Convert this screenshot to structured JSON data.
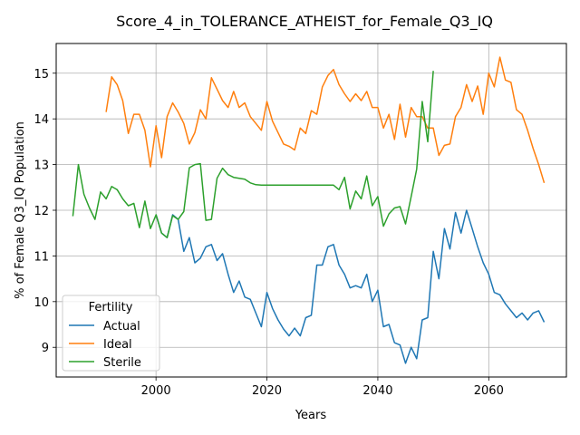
{
  "chart_data": {
    "type": "line",
    "title": "Score_4_in_TOLERANCE_ATHEIST_for_Female_Q3_IQ",
    "xlabel": "Years",
    "ylabel": "% of Female Q3_IQ Population",
    "xlim": [
      1982,
      2074
    ],
    "ylim": [
      8.35,
      15.65
    ],
    "xticks": [
      2000,
      2020,
      2040,
      2060
    ],
    "yticks": [
      9,
      10,
      11,
      12,
      13,
      14,
      15
    ],
    "grid": true,
    "legend": {
      "title": "Fertility",
      "position": "lower-left"
    },
    "series": [
      {
        "name": "Actual",
        "color": "#1f77b4",
        "x": [
          2000,
          2001,
          2002,
          2003,
          2004,
          2005,
          2006,
          2007,
          2008,
          2009,
          2010,
          2011,
          2012,
          2013,
          2014,
          2015,
          2016,
          2017,
          2018,
          2019,
          2020,
          2021,
          2022,
          2023,
          2024,
          2025,
          2026,
          2027,
          2028,
          2029,
          2030,
          2031,
          2032,
          2033,
          2034,
          2035,
          2036,
          2037,
          2038,
          2039,
          2040,
          2041,
          2042,
          2043,
          2044,
          2045,
          2046,
          2047,
          2048,
          2049,
          2050,
          2051,
          2052,
          2053,
          2054,
          2055,
          2056,
          2057,
          2058,
          2059,
          2060,
          2061,
          2062,
          2063,
          2064,
          2065,
          2066,
          2067,
          2068,
          2069,
          2070
        ],
        "y": [
          11.9,
          11.5,
          11.4,
          11.9,
          11.8,
          11.1,
          11.4,
          10.85,
          10.95,
          11.2,
          11.25,
          10.9,
          11.05,
          10.6,
          10.2,
          10.45,
          10.1,
          10.05,
          9.75,
          9.45,
          10.2,
          9.85,
          9.6,
          9.4,
          9.25,
          9.42,
          9.25,
          9.65,
          9.7,
          10.8,
          10.8,
          11.2,
          11.25,
          10.8,
          10.6,
          10.3,
          10.35,
          10.3,
          10.6,
          10.0,
          10.25,
          9.45,
          9.5,
          9.1,
          9.05,
          8.65,
          9.0,
          8.75,
          9.6,
          9.65,
          11.1,
          10.5,
          11.6,
          11.15,
          11.95,
          11.5,
          12.0,
          11.6,
          11.2,
          10.85,
          10.6,
          10.2,
          10.15,
          9.95,
          9.8,
          9.65,
          9.75,
          9.6,
          9.75,
          9.8,
          9.55
        ]
      },
      {
        "name": "Ideal",
        "color": "#ff7f0e",
        "x": [
          1991,
          1992,
          1993,
          1994,
          1995,
          1996,
          1997,
          1998,
          1999,
          2000,
          2001,
          2002,
          2003,
          2004,
          2005,
          2006,
          2007,
          2008,
          2009,
          2010,
          2011,
          2012,
          2013,
          2014,
          2015,
          2016,
          2017,
          2018,
          2019,
          2020,
          2021,
          2022,
          2023,
          2024,
          2025,
          2026,
          2027,
          2028,
          2029,
          2030,
          2031,
          2032,
          2033,
          2034,
          2035,
          2036,
          2037,
          2038,
          2039,
          2040,
          2041,
          2042,
          2043,
          2044,
          2045,
          2046,
          2047,
          2048,
          2049,
          2050,
          2051,
          2052,
          2053,
          2054,
          2055,
          2056,
          2057,
          2058,
          2059,
          2060,
          2061,
          2062,
          2063,
          2064,
          2065,
          2066,
          2067,
          2068,
          2069,
          2070
        ],
        "y": [
          14.15,
          14.92,
          14.75,
          14.4,
          13.68,
          14.1,
          14.1,
          13.75,
          12.95,
          13.85,
          13.15,
          14.05,
          14.35,
          14.15,
          13.9,
          13.45,
          13.7,
          14.2,
          14.0,
          14.9,
          14.65,
          14.4,
          14.25,
          14.6,
          14.25,
          14.35,
          14.05,
          13.9,
          13.75,
          14.38,
          13.95,
          13.7,
          13.45,
          13.4,
          13.32,
          13.8,
          13.68,
          14.18,
          14.1,
          14.7,
          14.95,
          15.08,
          14.75,
          14.55,
          14.38,
          14.55,
          14.4,
          14.6,
          14.25,
          14.25,
          13.8,
          14.1,
          13.55,
          14.32,
          13.6,
          14.25,
          14.05,
          14.05,
          13.8,
          13.8,
          13.2,
          13.42,
          13.45,
          14.05,
          14.25,
          14.75,
          14.38,
          14.72,
          14.1,
          15.0,
          14.7,
          15.35,
          14.85,
          14.8,
          14.2,
          14.1,
          13.75,
          13.35,
          13.0,
          12.6
        ]
      },
      {
        "name": "Sterile",
        "color": "#2ca02c",
        "x": [
          1985,
          1986,
          1987,
          1988,
          1989,
          1990,
          1991,
          1992,
          1993,
          1994,
          1995,
          1996,
          1997,
          1998,
          1999,
          2000,
          2001,
          2002,
          2003,
          2004,
          2005,
          2006,
          2007,
          2008,
          2009,
          2010,
          2011,
          2012,
          2013,
          2014,
          2015,
          2016,
          2017,
          2018,
          2019,
          2020,
          2021,
          2022,
          2023,
          2024,
          2025,
          2026,
          2027,
          2028,
          2029,
          2030,
          2031,
          2032,
          2033,
          2034,
          2035,
          2036,
          2037,
          2038,
          2039,
          2040,
          2041,
          2042,
          2043,
          2044,
          2045,
          2046,
          2047,
          2048,
          2049,
          2050
        ],
        "y": [
          11.87,
          13.0,
          12.35,
          12.05,
          11.8,
          12.4,
          12.25,
          12.52,
          12.45,
          12.25,
          12.1,
          12.15,
          11.62,
          12.2,
          11.6,
          11.9,
          11.5,
          11.4,
          11.88,
          11.8,
          11.97,
          12.93,
          13.0,
          13.02,
          11.78,
          11.8,
          12.7,
          12.92,
          12.78,
          12.72,
          12.7,
          12.68,
          12.6,
          12.56,
          12.55,
          12.55,
          12.55,
          12.55,
          12.55,
          12.55,
          12.55,
          12.55,
          12.55,
          12.55,
          12.55,
          12.55,
          12.55,
          12.55,
          12.45,
          12.72,
          12.03,
          12.42,
          12.25,
          12.75,
          12.1,
          12.3,
          11.65,
          11.92,
          12.05,
          12.08,
          11.7,
          12.3,
          12.9,
          14.38,
          13.5,
          15.05
        ]
      }
    ]
  }
}
